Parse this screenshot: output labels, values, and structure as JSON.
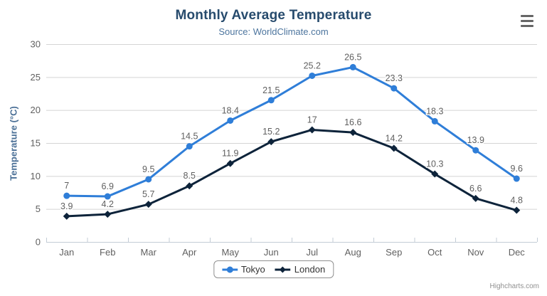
{
  "credits": "Highcharts.com",
  "chart_data": {
    "type": "line",
    "title": "Monthly Average Temperature",
    "subtitle": "Source: WorldClimate.com",
    "xlabel": "",
    "ylabel": "Temperature (°C)",
    "categories": [
      "Jan",
      "Feb",
      "Mar",
      "Apr",
      "May",
      "Jun",
      "Jul",
      "Aug",
      "Sep",
      "Oct",
      "Nov",
      "Dec"
    ],
    "yticks": [
      0,
      5,
      10,
      15,
      20,
      25,
      30
    ],
    "ylim": [
      0,
      30
    ],
    "grid": true,
    "legend_position": "bottom-center",
    "series": [
      {
        "name": "Tokyo",
        "color": "#2f7ed8",
        "marker": "circle",
        "values": [
          7,
          6.9,
          9.5,
          14.5,
          18.4,
          21.5,
          25.2,
          26.5,
          23.3,
          18.3,
          13.9,
          9.6
        ]
      },
      {
        "name": "London",
        "color": "#0d233a",
        "marker": "diamond",
        "values": [
          3.9,
          4.2,
          5.7,
          8.5,
          11.9,
          15.2,
          17,
          16.6,
          14.2,
          10.3,
          6.6,
          4.8
        ]
      }
    ],
    "colors": {
      "title": "#274b6d",
      "subtitle": "#4d759e",
      "axis_title": "#4a6f96",
      "axis_label": "#606060",
      "data_label": "#606060",
      "gridline": "#d4d4d4",
      "axis_line": "#c3ccd6",
      "legend_border": "#909090",
      "legend_text": "#333333",
      "credits": "#909090",
      "menu_icon": "#666666"
    }
  }
}
